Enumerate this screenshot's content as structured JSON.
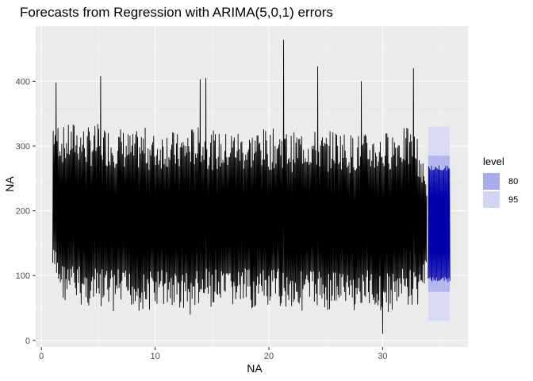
{
  "chart_data": {
    "type": "line",
    "title": "Forecasts from Regression with ARIMA(5,0,1) errors",
    "xlabel": "NA",
    "ylabel": "NA",
    "xlim": [
      -0.5,
      37.5
    ],
    "ylim": [
      -10,
      485
    ],
    "x_ticks": [
      0,
      10,
      20,
      30
    ],
    "y_ticks": [
      0,
      100,
      200,
      300,
      400
    ],
    "grid": true,
    "legend": {
      "title": "level",
      "position": "right",
      "entries": [
        "80",
        "95"
      ]
    },
    "history": {
      "start": 1,
      "end": 33.86,
      "points_per_unit": 24,
      "envelope": [
        [
          1,
          90,
          350
        ],
        [
          2,
          60,
          330
        ],
        [
          3,
          55,
          340
        ],
        [
          4,
          50,
          330
        ],
        [
          5,
          45,
          335
        ],
        [
          6,
          50,
          330
        ],
        [
          7,
          45,
          330
        ],
        [
          8,
          50,
          320
        ],
        [
          9,
          40,
          330
        ],
        [
          10,
          50,
          320
        ],
        [
          11,
          50,
          330
        ],
        [
          12,
          45,
          320
        ],
        [
          13,
          50,
          330
        ],
        [
          14,
          45,
          330
        ],
        [
          15,
          50,
          325
        ],
        [
          16,
          45,
          320
        ],
        [
          17,
          50,
          330
        ],
        [
          18,
          50,
          320
        ],
        [
          19,
          45,
          330
        ],
        [
          20,
          45,
          325
        ],
        [
          21,
          50,
          330
        ],
        [
          22,
          50,
          320
        ],
        [
          23,
          45,
          330
        ],
        [
          24,
          50,
          325
        ],
        [
          25,
          45,
          320
        ],
        [
          26,
          50,
          330
        ],
        [
          27,
          45,
          320
        ],
        [
          28,
          45,
          320
        ],
        [
          29,
          50,
          320
        ],
        [
          30,
          40,
          320
        ],
        [
          31,
          45,
          330
        ],
        [
          32,
          50,
          330
        ],
        [
          33,
          50,
          320
        ],
        [
          33.86,
          90,
          250
        ]
      ],
      "peaks": [
        [
          1.3,
          398
        ],
        [
          5.2,
          408
        ],
        [
          14.0,
          403
        ],
        [
          14.5,
          405
        ],
        [
          21.3,
          464
        ],
        [
          24.3,
          423
        ],
        [
          28.1,
          400
        ],
        [
          32.7,
          420
        ],
        [
          30.0,
          10
        ],
        [
          6.3,
          45
        ],
        [
          13.1,
          40
        ]
      ]
    },
    "forecast": {
      "start": 34.0,
      "end": 35.9,
      "band_80": [
        75,
        285
      ],
      "band_95": [
        30,
        330
      ],
      "point_range": [
        90,
        270
      ]
    },
    "colors": {
      "panel": "#ebebeb",
      "grid_major": "#ffffff",
      "series": "#000000",
      "forecast_line": "#0000aa",
      "band_80": "#b0b3ec",
      "band_95": "#d6d8f6"
    }
  }
}
